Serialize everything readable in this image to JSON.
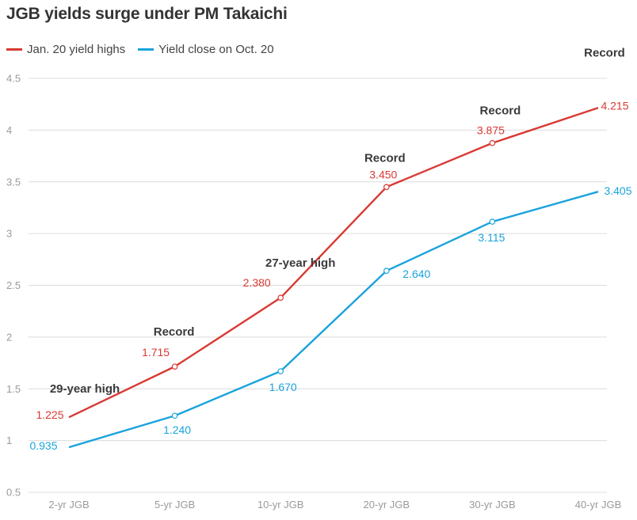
{
  "title": "JGB yields surge under PM Takaichi",
  "legend": [
    {
      "name": "Jan. 20 yield highs",
      "color": "#d83a34"
    },
    {
      "name": "Yield close on Oct. 20",
      "color": "#1aa3dc"
    }
  ],
  "chart_data": {
    "type": "line",
    "title": "JGB yields surge under PM Takaichi",
    "xlabel": "",
    "ylabel": "",
    "categories": [
      "2-yr JGB",
      "5-yr JGB",
      "10-yr JGB",
      "20-yr JGB",
      "30-yr JGB",
      "40-yr JGB"
    ],
    "ylim": [
      0.5,
      4.5
    ],
    "yticks": [
      "0.5",
      "1",
      "1.5",
      "2",
      "2.5",
      "3",
      "3.5",
      "4",
      "4.5"
    ],
    "grid": true,
    "legend_position": "top-left",
    "series": [
      {
        "name": "Jan. 20 yield highs",
        "color": "#d83a34",
        "values": [
          1.225,
          1.715,
          2.38,
          3.45,
          3.875,
          4.215
        ],
        "labels": [
          "1.225",
          "1.715",
          "2.380",
          "3.450",
          "3.875",
          "4.215"
        ],
        "annotations": [
          "29-year high",
          "Record",
          "27-year high",
          "Record",
          "Record",
          "Record"
        ]
      },
      {
        "name": "Yield close on Oct. 20",
        "color": "#1aa3dc",
        "values": [
          0.935,
          1.24,
          1.67,
          2.64,
          3.115,
          3.405
        ],
        "labels": [
          "0.935",
          "1.240",
          "1.670",
          "2.640",
          "3.115",
          "3.405"
        ]
      }
    ]
  }
}
